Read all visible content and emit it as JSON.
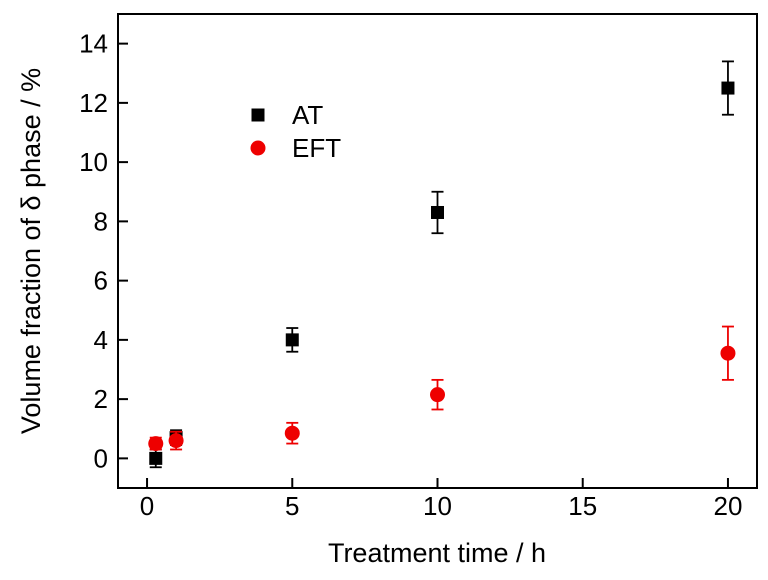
{
  "chart_data": {
    "type": "scatter",
    "title": "",
    "xlabel": "Treatment time / h",
    "ylabel": "Volume fraction of δ phase / %",
    "xlim": [
      -1,
      21
    ],
    "ylim": [
      -1,
      15
    ],
    "xticks": [
      0,
      5,
      10,
      15,
      20
    ],
    "yticks": [
      0,
      2,
      4,
      6,
      8,
      10,
      12,
      14
    ],
    "grid": false,
    "frame": "full-box",
    "tick_direction": "in",
    "legend": {
      "position": "upper-left-inside",
      "entries": [
        "AT",
        "EFT"
      ]
    },
    "series": [
      {
        "name": "AT",
        "marker": "square",
        "color": "#000000",
        "x": [
          0.3,
          1,
          5,
          10,
          20
        ],
        "y": [
          0.0,
          0.7,
          4.0,
          8.3,
          12.5
        ],
        "yerr": [
          0.3,
          0.25,
          0.4,
          0.7,
          0.9
        ]
      },
      {
        "name": "EFT",
        "marker": "circle",
        "color": "#ee0000",
        "x": [
          0.3,
          1,
          5,
          10,
          20
        ],
        "y": [
          0.5,
          0.6,
          0.85,
          2.15,
          3.55
        ],
        "yerr": [
          0.2,
          0.3,
          0.35,
          0.5,
          0.9
        ]
      }
    ],
    "colors": {
      "background": "#ffffff",
      "axis": "#000000",
      "text": "#000000"
    }
  }
}
